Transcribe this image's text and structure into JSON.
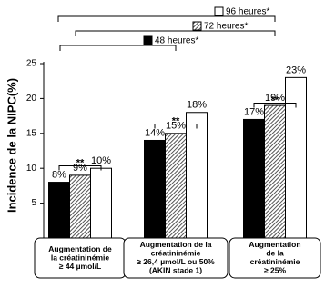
{
  "chart_data": {
    "type": "bar",
    "y_label": "Incidence de la NIPC(%)",
    "categories": [
      [
        "Augmentation de",
        "la créatininémie",
        "≥ 44 µmol/L"
      ],
      [
        "Augmentation de la",
        "créatininémie",
        "≥ 26,4 µmol/L ou 50%",
        "(AKIN stade 1)"
      ],
      [
        "Augmentation",
        "de la",
        "créatininémie",
        "≥ 25%"
      ]
    ],
    "series": [
      {
        "name": "48 heures*",
        "color": "#000000",
        "values": [
          8,
          14,
          17
        ],
        "value_labels": [
          "8%",
          "14%",
          "17%"
        ]
      },
      {
        "name": "72 heures*",
        "color": "#555555",
        "pattern": "hatch",
        "values": [
          9,
          15,
          19
        ],
        "value_labels": [
          "9%",
          "15%",
          "19%"
        ]
      },
      {
        "name": "96 heures*",
        "color": "#ffffff",
        "values": [
          10,
          18,
          23
        ],
        "value_labels": [
          "10%",
          "18%",
          "23%"
        ]
      }
    ],
    "annotations": [
      "**",
      "**",
      "**"
    ],
    "ylim": [
      0,
      25
    ],
    "yticks": [
      5,
      10,
      15,
      20,
      25
    ]
  }
}
